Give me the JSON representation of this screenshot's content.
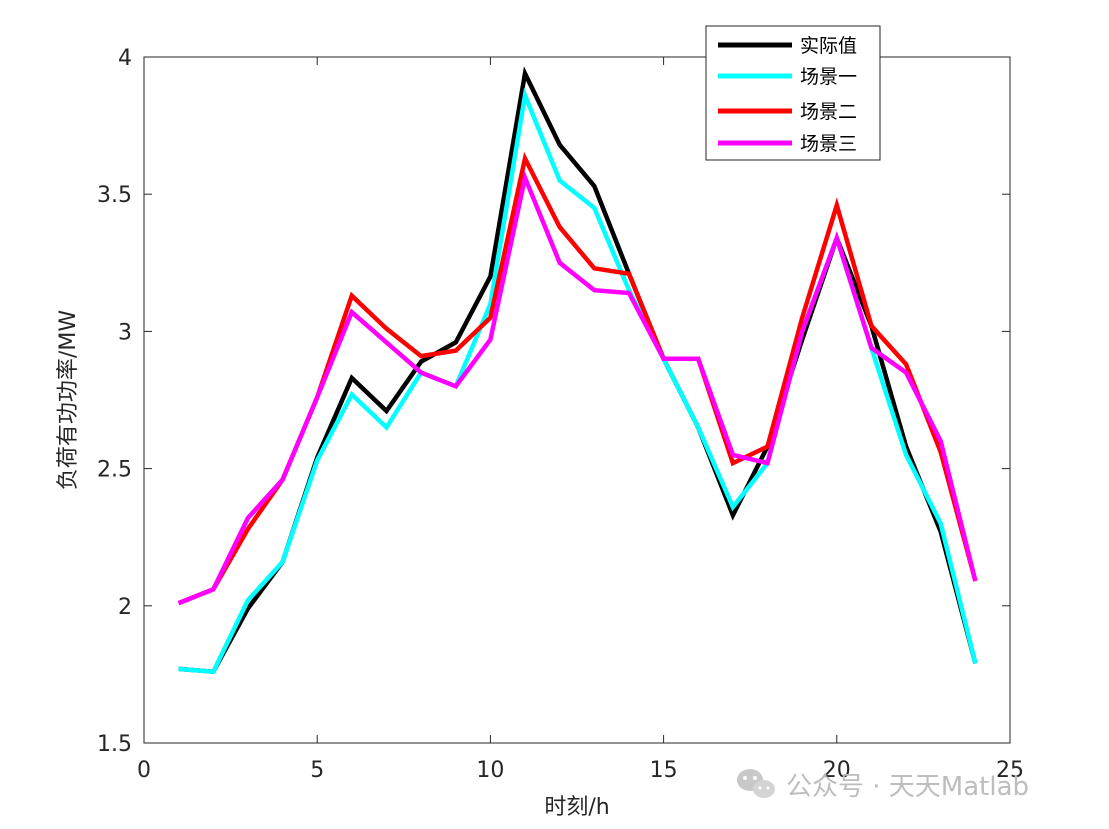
{
  "chart_data": {
    "type": "line",
    "xlabel": "时刻/h",
    "ylabel": "负荷有功功率/MW",
    "xlim": [
      0,
      25
    ],
    "ylim": [
      1.5,
      4
    ],
    "xticks": [
      0,
      5,
      10,
      15,
      20,
      25
    ],
    "yticks": [
      1.5,
      2,
      2.5,
      3,
      3.5,
      4
    ],
    "xtick_labels": [
      "0",
      "5",
      "10",
      "15",
      "20",
      "25"
    ],
    "ytick_labels": [
      "1.5",
      "2",
      "2.5",
      "3",
      "3.5",
      "4"
    ],
    "grid": false,
    "legend_position": "top-right",
    "x": [
      1,
      2,
      3,
      4,
      5,
      6,
      7,
      8,
      9,
      10,
      11,
      12,
      13,
      14,
      15,
      16,
      17,
      18,
      19,
      20,
      21,
      22,
      23,
      24
    ],
    "series": [
      {
        "name": "实际值",
        "color": "#000000",
        "values": [
          1.77,
          1.76,
          1.99,
          2.16,
          2.54,
          2.83,
          2.71,
          2.89,
          2.96,
          3.2,
          3.94,
          3.68,
          3.53,
          3.21,
          2.9,
          2.65,
          2.33,
          2.58,
          2.97,
          3.34,
          3.02,
          2.58,
          2.27,
          1.79
        ]
      },
      {
        "name": "场景一",
        "color": "#00ffff",
        "values": [
          1.77,
          1.76,
          2.02,
          2.16,
          2.53,
          2.77,
          2.65,
          2.85,
          2.8,
          3.1,
          3.86,
          3.55,
          3.45,
          3.15,
          2.9,
          2.65,
          2.36,
          2.52,
          3.0,
          3.34,
          2.94,
          2.55,
          2.3,
          1.79
        ]
      },
      {
        "name": "场景二",
        "color": "#ff0000",
        "values": [
          2.01,
          2.06,
          2.28,
          2.46,
          2.76,
          3.13,
          3.01,
          2.91,
          2.93,
          3.05,
          3.63,
          3.38,
          3.23,
          3.21,
          2.9,
          2.9,
          2.52,
          2.58,
          3.05,
          3.46,
          3.02,
          2.88,
          2.56,
          2.09
        ]
      },
      {
        "name": "场景三",
        "color": "#ff00ff",
        "values": [
          2.01,
          2.06,
          2.32,
          2.46,
          2.76,
          3.07,
          2.96,
          2.85,
          2.8,
          2.97,
          3.56,
          3.25,
          3.15,
          3.14,
          2.9,
          2.9,
          2.55,
          2.52,
          3.0,
          3.34,
          2.94,
          2.85,
          2.6,
          2.09
        ]
      }
    ]
  },
  "legend": {
    "items": [
      "实际值",
      "场景一",
      "场景二",
      "场景三"
    ]
  },
  "watermark": {
    "text": "公众号 · 天天Matlab",
    "icon": "wechat-icon"
  }
}
